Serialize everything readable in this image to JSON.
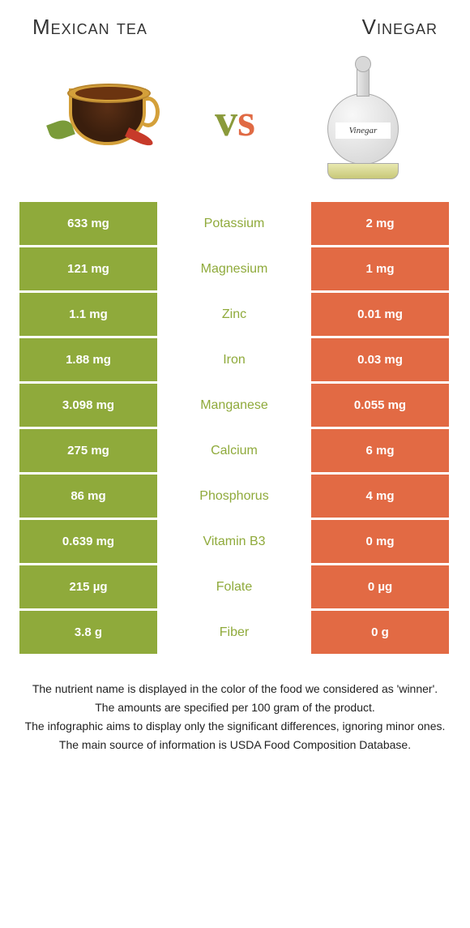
{
  "header": {
    "left_title": "Mexican tea",
    "right_title": "Vinegar"
  },
  "vs_label": {
    "v": "v",
    "s": "s"
  },
  "bottle_label": "Vinegar",
  "colors": {
    "left_bg": "#8faa3b",
    "right_bg": "#e26a44",
    "mid_text": "#8faa3b"
  },
  "rows": [
    {
      "left": "633 mg",
      "label": "Potassium",
      "right": "2 mg"
    },
    {
      "left": "121 mg",
      "label": "Magnesium",
      "right": "1 mg"
    },
    {
      "left": "1.1 mg",
      "label": "Zinc",
      "right": "0.01 mg"
    },
    {
      "left": "1.88 mg",
      "label": "Iron",
      "right": "0.03 mg"
    },
    {
      "left": "3.098 mg",
      "label": "Manganese",
      "right": "0.055 mg"
    },
    {
      "left": "275 mg",
      "label": "Calcium",
      "right": "6 mg"
    },
    {
      "left": "86 mg",
      "label": "Phosphorus",
      "right": "4 mg"
    },
    {
      "left": "0.639 mg",
      "label": "Vitamin B3",
      "right": "0 mg"
    },
    {
      "left": "215 µg",
      "label": "Folate",
      "right": "0 µg"
    },
    {
      "left": "3.8 g",
      "label": "Fiber",
      "right": "0 g"
    }
  ],
  "footer": {
    "line1": "The nutrient name is displayed in the color of the food we considered as 'winner'.",
    "line2": "The amounts are specified per 100 gram of the product.",
    "line3": "The infographic aims to display only the significant differences, ignoring minor ones.",
    "line4": "The main source of information is USDA Food Composition Database."
  }
}
